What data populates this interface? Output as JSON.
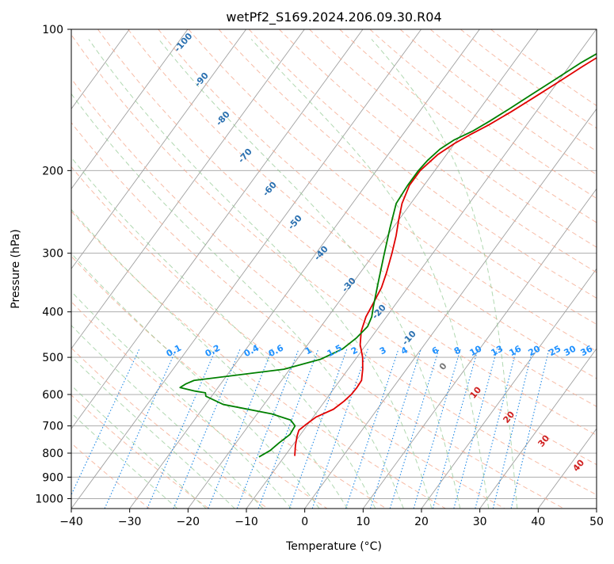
{
  "chart_data": {
    "type": "line",
    "title": "wetPf2_S169.2024.206.09.30.R04",
    "xlabel": "Temperature (°C)",
    "ylabel": "Pressure (hPa)",
    "xlim": [
      -40,
      50
    ],
    "ylim": [
      1050,
      100
    ],
    "y_scale": "log",
    "x_ticks": [
      -40,
      -30,
      -20,
      -10,
      0,
      10,
      20,
      30,
      40,
      50
    ],
    "y_ticks": [
      100,
      200,
      300,
      400,
      500,
      600,
      700,
      800,
      900,
      1000
    ],
    "grid": true,
    "colors": {
      "temperature": "#e00000",
      "dewpoint": "#008000",
      "isotherm": "#a0a0a0",
      "dry_adiabat": "#f4a58a",
      "moist_adiabat": "#90c890",
      "mixing_ratio": "#1e88e5",
      "mixing_label": "#1e90ff",
      "isotherm_label": "#2a70b0",
      "adiabat_label": "#d02020"
    },
    "series": [
      {
        "key": "temperature",
        "points": [
          [
            -8.3,
            811
          ],
          [
            -9.5,
            770
          ],
          [
            -10.4,
            735
          ],
          [
            -10.8,
            715
          ],
          [
            -10.3,
            695
          ],
          [
            -9.5,
            670
          ],
          [
            -7.5,
            645
          ],
          [
            -6.7,
            620
          ],
          [
            -6.3,
            600
          ],
          [
            -6.2,
            580
          ],
          [
            -6.3,
            560
          ],
          [
            -7.5,
            530
          ],
          [
            -9.0,
            500
          ],
          [
            -11.0,
            470
          ],
          [
            -12.5,
            440
          ],
          [
            -13.5,
            410
          ],
          [
            -14.0,
            380
          ],
          [
            -14.5,
            355
          ],
          [
            -15.5,
            330
          ],
          [
            -17.0,
            300
          ],
          [
            -18.5,
            275
          ],
          [
            -20.0,
            255
          ],
          [
            -21.5,
            235
          ],
          [
            -22.5,
            215
          ],
          [
            -22.5,
            200
          ],
          [
            -21.5,
            185
          ],
          [
            -20.0,
            175
          ],
          [
            -18.5,
            168
          ],
          [
            -16.5,
            160
          ],
          [
            -14.3,
            150
          ],
          [
            -12.2,
            140
          ],
          [
            -10.0,
            130
          ],
          [
            -7.7,
            120
          ],
          [
            -5.0,
            110
          ],
          [
            -2.6,
            102
          ],
          [
            -1.8,
            100
          ]
        ]
      },
      {
        "key": "dewpoint",
        "points": [
          [
            -14.3,
            815
          ],
          [
            -13.2,
            790
          ],
          [
            -12.6,
            760
          ],
          [
            -11.8,
            730
          ],
          [
            -12.0,
            700
          ],
          [
            -13.5,
            680
          ],
          [
            -17.5,
            660
          ],
          [
            -27.0,
            630
          ],
          [
            -31.0,
            605
          ],
          [
            -31.5,
            595
          ],
          [
            -33.5,
            590
          ],
          [
            -36.5,
            580
          ],
          [
            -36.0,
            570
          ],
          [
            -35.0,
            560
          ],
          [
            -21.0,
            530
          ],
          [
            -16.0,
            505
          ],
          [
            -13.5,
            480
          ],
          [
            -12.5,
            455
          ],
          [
            -12.0,
            430
          ],
          [
            -12.5,
            410
          ],
          [
            -13.5,
            390
          ],
          [
            -15.5,
            350
          ],
          [
            -18.0,
            305
          ],
          [
            -20.5,
            265
          ],
          [
            -22.5,
            235
          ],
          [
            -22.8,
            215
          ],
          [
            -22.8,
            200
          ],
          [
            -22.5,
            190
          ],
          [
            -21.8,
            180
          ],
          [
            -20.5,
            172
          ],
          [
            -18.5,
            165
          ],
          [
            -16.8,
            157
          ],
          [
            -15.0,
            148
          ],
          [
            -13.0,
            138
          ],
          [
            -10.8,
            128
          ],
          [
            -8.5,
            118
          ],
          [
            -6.0,
            110
          ],
          [
            -3.6,
            103
          ],
          [
            -3.0,
            100
          ]
        ]
      }
    ],
    "isotherm_labels": [
      "-100",
      "-90",
      "-80",
      "-70",
      "-60",
      "-50",
      "-40",
      "-30",
      "-20",
      "-10"
    ],
    "mixing_ratio_labels": [
      "0.1",
      "0.2",
      "0.4",
      "0.6",
      "1",
      "1.5",
      "2",
      "3",
      "4",
      "6",
      "8",
      "10",
      "13",
      "16",
      "20",
      "25",
      "30",
      "36"
    ],
    "adiabat_labels": [
      "0",
      "10",
      "20",
      "30",
      "40"
    ]
  }
}
